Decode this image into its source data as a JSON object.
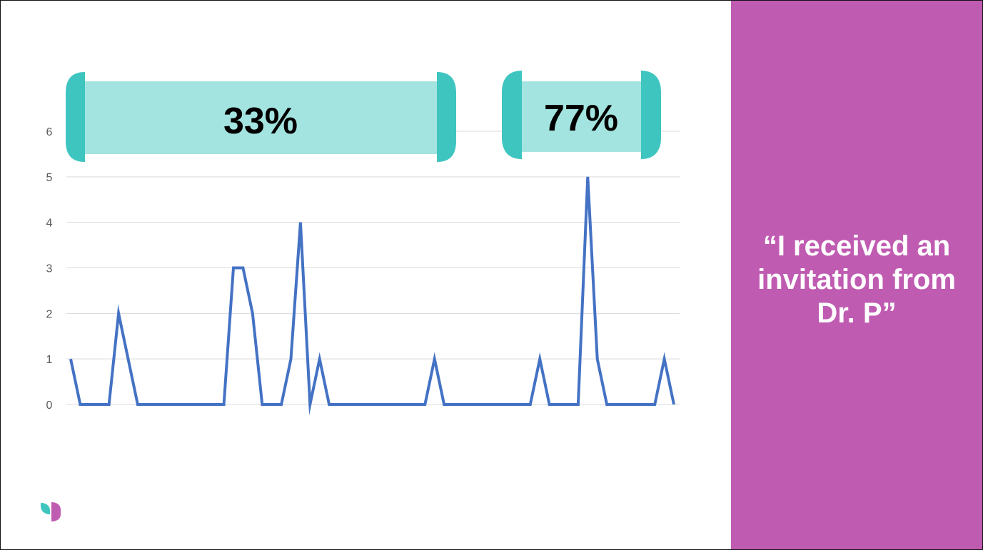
{
  "chart_data": {
    "type": "line",
    "x": [
      1,
      2,
      3,
      4,
      5,
      6,
      7,
      8,
      9,
      10,
      11,
      12,
      13,
      14,
      15,
      16,
      17,
      18,
      19,
      20,
      21,
      22,
      23,
      24,
      25,
      26,
      27,
      28,
      29,
      30,
      31,
      32,
      33,
      34,
      35,
      36,
      37,
      38,
      39,
      40,
      41,
      42,
      43,
      44,
      45,
      46,
      47,
      48,
      49,
      50,
      51,
      52,
      53,
      54,
      55,
      56,
      57,
      58,
      59,
      60,
      61,
      62,
      63,
      64
    ],
    "values": [
      1,
      0,
      0,
      0,
      0,
      2,
      1,
      0,
      0,
      0,
      0,
      0,
      0,
      0,
      0,
      0,
      0,
      3,
      3,
      2,
      0,
      0,
      0,
      1,
      4,
      0,
      1,
      0,
      0,
      0,
      0,
      0,
      0,
      0,
      0,
      0,
      0,
      0,
      1,
      0,
      0,
      0,
      0,
      0,
      0,
      0,
      0,
      0,
      0,
      1,
      0,
      0,
      0,
      0,
      5,
      1,
      0,
      0,
      0,
      0,
      0,
      0,
      1,
      0
    ],
    "yticks": [
      "0",
      "1",
      "2",
      "3",
      "4",
      "5",
      "6"
    ],
    "ylim": [
      0,
      6
    ],
    "grid": true,
    "line_color": "#4472c4"
  },
  "callouts": [
    {
      "label": "33%"
    },
    {
      "label": "77%"
    }
  ],
  "quote": "“I received an invitation from Dr. P”",
  "logo_icon": "leaf-logo-icon",
  "colors": {
    "panel": "#c05bb2",
    "callout_fill": "#a3e4e0",
    "callout_bracket": "#3fc5c0",
    "logo_teal": "#3fc5c0",
    "logo_purple": "#c05bb2"
  }
}
